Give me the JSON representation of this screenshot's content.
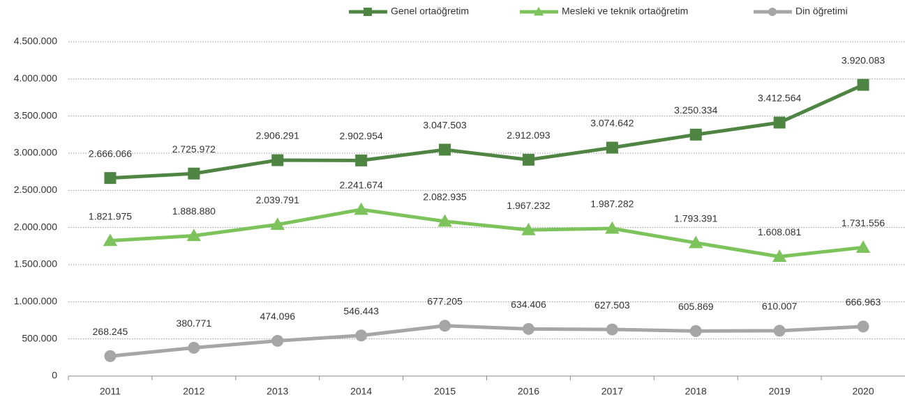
{
  "chart_data": {
    "type": "line",
    "categories": [
      "2011",
      "2012",
      "2013",
      "2014",
      "2015",
      "2016",
      "2017",
      "2018",
      "2019",
      "2020"
    ],
    "series": [
      {
        "name": "Genel ortaöğretim",
        "color": "#4e8542",
        "marker": "square",
        "values": [
          2666066,
          2725972,
          2906291,
          2902954,
          3047503,
          2912093,
          3074642,
          3250334,
          3412564,
          3920083
        ],
        "value_labels": [
          "2.666.066",
          "2.725.972",
          "2.906.291",
          "2.902.954",
          "3.047.503",
          "2.912.093",
          "3.074.642",
          "3.250.334",
          "3.412.564",
          "3.920.083"
        ]
      },
      {
        "name": "Mesleki ve teknik ortaöğretim",
        "color": "#7dc35b",
        "marker": "triangle",
        "values": [
          1821975,
          1888880,
          2039791,
          2241674,
          2082935,
          1967232,
          1987282,
          1793391,
          1608081,
          1731556
        ],
        "value_labels": [
          "1.821.975",
          "1.888.880",
          "2.039.791",
          "2.241.674",
          "2.082.935",
          "1.967.232",
          "1.987.282",
          "1.793.391",
          "1.608.081",
          "1.731.556"
        ]
      },
      {
        "name": "Din öğretimi",
        "color": "#a6a6a6",
        "marker": "circle",
        "values": [
          268245,
          380771,
          474096,
          546443,
          677205,
          634406,
          627503,
          605869,
          610007,
          666963
        ],
        "value_labels": [
          "268.245",
          "380.771",
          "474.096",
          "546.443",
          "677.205",
          "634.406",
          "627.503",
          "605.869",
          "610.007",
          "666.963"
        ]
      }
    ],
    "ylim": [
      0,
      4500000
    ],
    "yticks": [
      0,
      {
        "value": 500000,
        "label": "500.000"
      },
      {
        "value": 1000000,
        "label": "1.000.000"
      },
      {
        "value": 1500000,
        "label": "1.500.000"
      },
      {
        "value": 2000000,
        "label": "2.000.000"
      },
      {
        "value": 2500000,
        "label": "2.500.000"
      },
      {
        "value": 3000000,
        "label": "3.000.000"
      },
      {
        "value": 3500000,
        "label": "3.500.000"
      },
      {
        "value": 4000000,
        "label": "4.000.000"
      },
      {
        "value": 4500000,
        "label": "4.500.000"
      }
    ],
    "grid": true,
    "legend": "top"
  }
}
